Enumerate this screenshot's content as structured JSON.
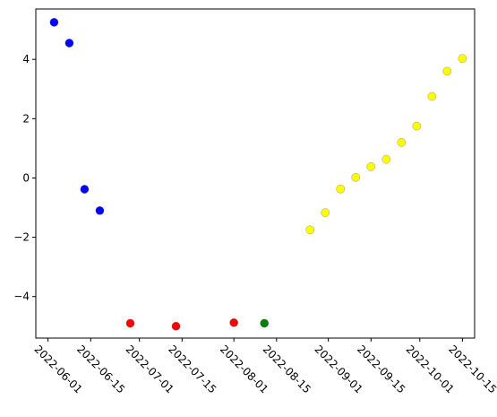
{
  "chart_data": {
    "type": "scatter",
    "title": "",
    "xlabel": "",
    "ylabel": "",
    "x_axis": "date",
    "xlim": [
      "2022-05-28",
      "2022-10-19"
    ],
    "ylim": [
      -5.4,
      5.7
    ],
    "grid": false,
    "legend": "none",
    "x_ticks": [
      "2022-06-01",
      "2022-06-15",
      "2022-07-01",
      "2022-07-15",
      "2022-08-01",
      "2022-08-15",
      "2022-09-01",
      "2022-09-15",
      "2022-10-01",
      "2022-10-15"
    ],
    "y_ticks": [
      -4,
      -2,
      0,
      2,
      4
    ],
    "series": [
      {
        "color": "#0000ff",
        "points": [
          {
            "x": "2022-06-03",
            "y": 5.25
          },
          {
            "x": "2022-06-08",
            "y": 4.55
          },
          {
            "x": "2022-06-13",
            "y": -0.38
          },
          {
            "x": "2022-06-18",
            "y": -1.1
          }
        ]
      },
      {
        "color": "#ff0000",
        "points": [
          {
            "x": "2022-06-28",
            "y": -4.9
          },
          {
            "x": "2022-07-13",
            "y": -5.0
          },
          {
            "x": "2022-08-01",
            "y": -4.88
          }
        ]
      },
      {
        "color": "#008000",
        "points": [
          {
            "x": "2022-08-11",
            "y": -4.9
          }
        ]
      },
      {
        "color": "#ffff00",
        "points": [
          {
            "x": "2022-08-26",
            "y": -1.75
          },
          {
            "x": "2022-08-31",
            "y": -1.17
          },
          {
            "x": "2022-09-05",
            "y": -0.37
          },
          {
            "x": "2022-09-10",
            "y": 0.02
          },
          {
            "x": "2022-09-15",
            "y": 0.38
          },
          {
            "x": "2022-09-20",
            "y": 0.63
          },
          {
            "x": "2022-09-25",
            "y": 1.2
          },
          {
            "x": "2022-09-30",
            "y": 1.75
          },
          {
            "x": "2022-10-05",
            "y": 2.75
          },
          {
            "x": "2022-10-10",
            "y": 3.6
          },
          {
            "x": "2022-10-15",
            "y": 4.03
          }
        ]
      }
    ]
  }
}
